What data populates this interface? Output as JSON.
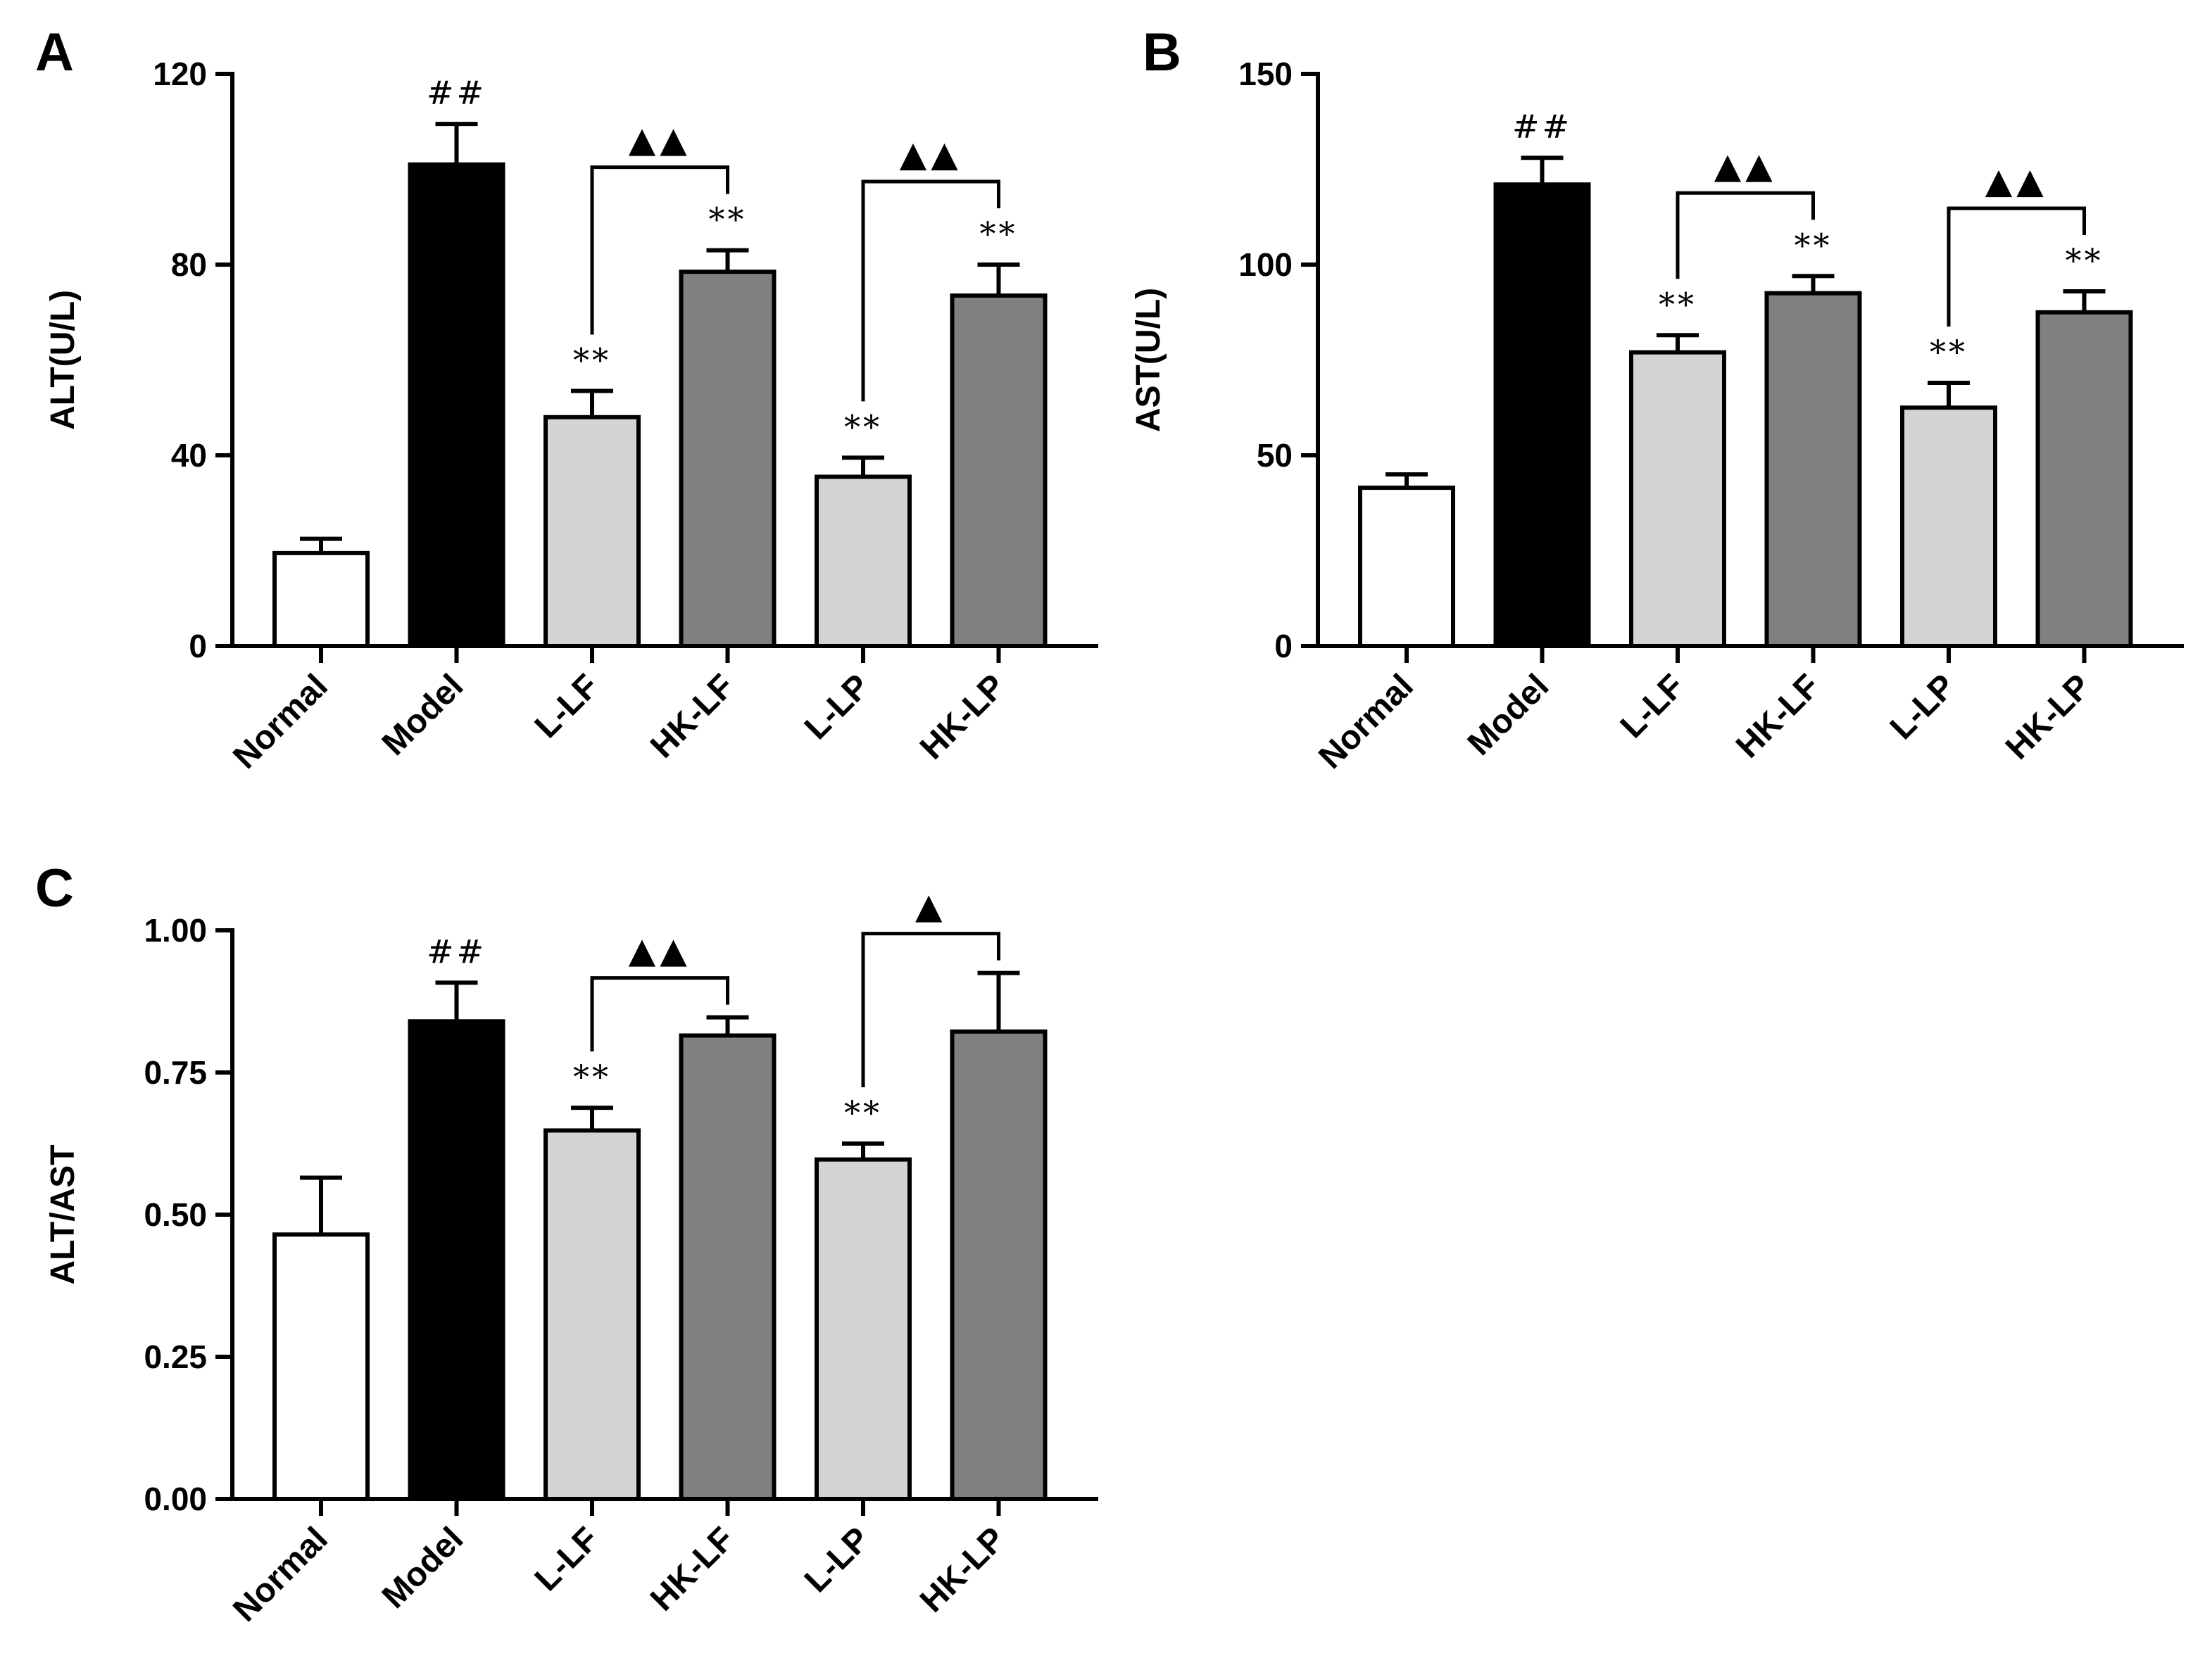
{
  "colors": {
    "Normal": "#ffffff",
    "Model": "#000000",
    "L-LF": "#d4d4d4",
    "HK-LF": "#808080",
    "L-LP": "#d4d4d4",
    "HK-LP": "#808080",
    "stroke": "#000000"
  },
  "chart_data": [
    {
      "panel": "A",
      "type": "bar",
      "ylabel": "ALT(U/L)",
      "ylim": [
        0,
        120
      ],
      "yticks": [
        0,
        40,
        80,
        120
      ],
      "ytick_labels": [
        "0",
        "40",
        "80",
        "120"
      ],
      "categories": [
        "Normal",
        "Model",
        "L-LF",
        "HK-LF",
        "L-LP",
        "HK-LP"
      ],
      "values": [
        19.5,
        101,
        48,
        78.5,
        35.5,
        73.5
      ],
      "errors": [
        3,
        8.5,
        5.5,
        4.5,
        4,
        6.5
      ],
      "annotations": [
        "",
        "##",
        "**",
        "**",
        "**",
        "**"
      ],
      "brackets": [
        {
          "from": "L-LF",
          "to": "HK-LF",
          "label": "▲▲"
        },
        {
          "from": "L-LP",
          "to": "HK-LP",
          "label": "▲▲"
        }
      ]
    },
    {
      "panel": "B",
      "type": "bar",
      "ylabel": "AST(U/L)",
      "ylim": [
        0,
        150
      ],
      "yticks": [
        0,
        50,
        100,
        150
      ],
      "ytick_labels": [
        "0",
        "50",
        "100",
        "150"
      ],
      "categories": [
        "Normal",
        "Model",
        "L-LF",
        "HK-LF",
        "L-LP",
        "HK-LP"
      ],
      "values": [
        41.5,
        121,
        77,
        92.5,
        62.5,
        87.5
      ],
      "errors": [
        3.5,
        7,
        4.5,
        4.5,
        6.5,
        5.5
      ],
      "annotations": [
        "",
        "##",
        "**",
        "**",
        "**",
        "**"
      ],
      "brackets": [
        {
          "from": "L-LF",
          "to": "HK-LF",
          "label": "▲▲"
        },
        {
          "from": "L-LP",
          "to": "HK-LP",
          "label": "▲▲"
        }
      ]
    },
    {
      "panel": "C",
      "type": "bar",
      "ylabel": "ALT/AST",
      "ylim": [
        0,
        1.0
      ],
      "yticks": [
        0,
        0.25,
        0.5,
        0.75,
        1.0
      ],
      "ytick_labels": [
        "0.00",
        "0.25",
        "0.50",
        "0.75",
        "1.00"
      ],
      "categories": [
        "Normal",
        "Model",
        "L-LF",
        "HK-LF",
        "L-LP",
        "HK-LP"
      ],
      "values": [
        0.465,
        0.84,
        0.648,
        0.815,
        0.597,
        0.822
      ],
      "errors": [
        0.1,
        0.068,
        0.04,
        0.032,
        0.028,
        0.103
      ],
      "annotations": [
        "",
        "##",
        "**",
        "",
        "**",
        ""
      ],
      "brackets": [
        {
          "from": "L-LF",
          "to": "HK-LF",
          "label": "▲▲"
        },
        {
          "from": "L-LP",
          "to": "HK-LP",
          "label": "▲"
        }
      ]
    }
  ]
}
